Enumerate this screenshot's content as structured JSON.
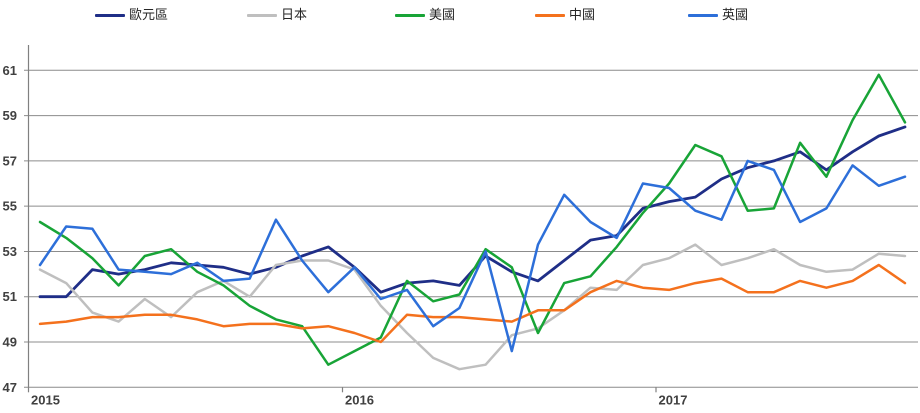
{
  "chart_data": {
    "type": "line",
    "title": "",
    "x_unit": "month",
    "x": [
      "2015-01",
      "2015-02",
      "2015-03",
      "2015-04",
      "2015-05",
      "2015-06",
      "2015-07",
      "2015-08",
      "2015-09",
      "2015-10",
      "2015-11",
      "2015-12",
      "2016-01",
      "2016-02",
      "2016-03",
      "2016-04",
      "2016-05",
      "2016-06",
      "2016-07",
      "2016-08",
      "2016-09",
      "2016-10",
      "2016-11",
      "2016-12",
      "2017-01",
      "2017-02",
      "2017-03",
      "2017-04",
      "2017-05",
      "2017-06",
      "2017-07",
      "2017-08",
      "2017-09",
      "2017-10"
    ],
    "x_tick_labels": [
      "2015",
      "2016",
      "2017"
    ],
    "y_ticks": [
      47,
      49,
      51,
      53,
      55,
      57,
      59,
      61
    ],
    "ylim": [
      47,
      62
    ],
    "grid": true,
    "legend_position": "top",
    "series": [
      {
        "name": "歐元區",
        "color": "#1F2E87",
        "values": [
          51.0,
          51.0,
          52.2,
          52.0,
          52.2,
          52.5,
          52.4,
          52.3,
          52.0,
          52.3,
          52.8,
          53.2,
          52.3,
          51.2,
          51.6,
          51.7,
          51.5,
          52.8,
          52.1,
          51.7,
          52.6,
          53.5,
          53.7,
          54.9,
          55.2,
          55.4,
          56.2,
          56.7,
          57.0,
          57.4,
          56.6,
          57.4,
          58.1,
          58.5
        ]
      },
      {
        "name": "日本",
        "color": "#BFBFBF",
        "values": [
          52.2,
          51.6,
          50.3,
          49.9,
          50.9,
          50.1,
          51.2,
          51.7,
          51.0,
          52.4,
          52.6,
          52.6,
          52.2,
          50.6,
          49.4,
          48.3,
          47.8,
          48.0,
          49.3,
          49.6,
          50.4,
          51.4,
          51.3,
          52.4,
          52.7,
          53.3,
          52.4,
          52.7,
          53.1,
          52.4,
          52.1,
          52.2,
          52.9,
          52.8
        ]
      },
      {
        "name": "美國",
        "color": "#18A437",
        "values": [
          54.3,
          53.6,
          52.7,
          51.5,
          52.8,
          53.1,
          52.1,
          51.5,
          50.6,
          50.0,
          49.7,
          48.0,
          48.6,
          49.2,
          51.7,
          50.8,
          51.1,
          53.1,
          52.3,
          49.4,
          51.6,
          51.9,
          53.2,
          54.7,
          56.0,
          57.7,
          57.2,
          54.8,
          54.9,
          57.8,
          56.3,
          58.8,
          60.8,
          58.7
        ]
      },
      {
        "name": "中國",
        "color": "#F4711D",
        "values": [
          49.8,
          49.9,
          50.1,
          50.1,
          50.2,
          50.2,
          50.0,
          49.7,
          49.8,
          49.8,
          49.6,
          49.7,
          49.4,
          49.0,
          50.2,
          50.1,
          50.1,
          50.0,
          49.9,
          50.4,
          50.4,
          51.2,
          51.7,
          51.4,
          51.3,
          51.6,
          51.8,
          51.2,
          51.2,
          51.7,
          51.4,
          51.7,
          52.4,
          51.6
        ]
      },
      {
        "name": "英國",
        "color": "#2D6FD9",
        "values": [
          52.4,
          54.1,
          54.0,
          52.2,
          52.1,
          52.0,
          52.5,
          51.7,
          51.8,
          54.4,
          52.6,
          51.2,
          52.3,
          50.9,
          51.3,
          49.7,
          50.5,
          53.0,
          48.6,
          53.3,
          55.5,
          54.3,
          53.6,
          56.0,
          55.8,
          54.8,
          54.4,
          57.0,
          56.6,
          54.3,
          54.9,
          56.8,
          55.9,
          56.3
        ]
      }
    ]
  },
  "legend": {
    "items": [
      {
        "label": "歐元區"
      },
      {
        "label": "日本"
      },
      {
        "label": "美國"
      },
      {
        "label": "中國"
      },
      {
        "label": "英國"
      }
    ]
  },
  "axes": {
    "y_labels": [
      "61",
      "59",
      "57",
      "55",
      "53",
      "51",
      "49",
      "47"
    ],
    "x_labels": [
      "2015",
      "2016",
      "2017"
    ]
  },
  "colors": {
    "gridline": "#8C8C8C",
    "axis": "#808080",
    "axis_text": "#404040",
    "legend_text": "#262626",
    "background": "#FFFFFF"
  }
}
